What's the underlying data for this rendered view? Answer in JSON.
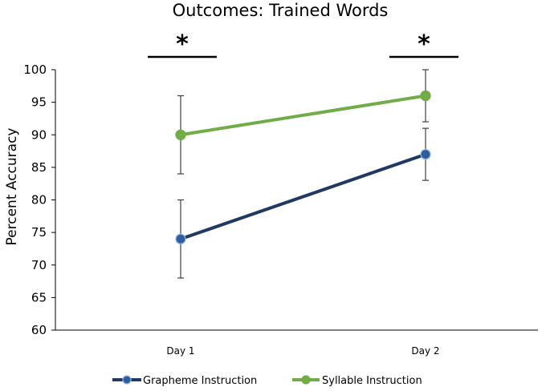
{
  "chart_data": {
    "type": "line",
    "title": "Outcomes: Trained Words",
    "xlabel": "",
    "ylabel": "Percent Accuracy",
    "categories": [
      "Day 1",
      "Day 2"
    ],
    "ylim": [
      60,
      100
    ],
    "yticks": [
      60,
      65,
      70,
      75,
      80,
      85,
      90,
      95,
      100
    ],
    "grid": false,
    "legend_position": "bottom",
    "series": [
      {
        "name": "Grapheme Instruction",
        "color": "#1f3864",
        "marker_fill": "#2e5e9e",
        "values": [
          74,
          87
        ],
        "error_low": [
          68,
          83
        ],
        "error_high": [
          80,
          91
        ]
      },
      {
        "name": "Syllable Instruction",
        "color": "#70ad47",
        "marker_fill": "#70ad47",
        "values": [
          90,
          96
        ],
        "error_low": [
          84,
          92
        ],
        "error_high": [
          96,
          100
        ]
      }
    ],
    "annotations": [
      {
        "category": "Day 1",
        "text": "*"
      },
      {
        "category": "Day 2",
        "text": "*"
      }
    ]
  }
}
